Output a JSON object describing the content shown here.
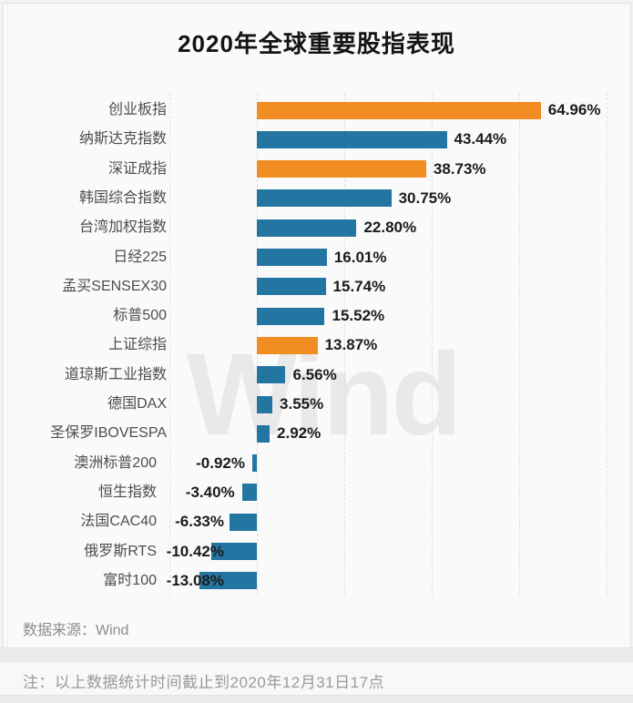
{
  "title": "2020年全球重要股指表现",
  "watermark_text": "Wind",
  "footer": {
    "source": "数据来源：Wind",
    "note": "注：以上数据统计时间截止到2020年12月31日17点"
  },
  "colors": {
    "highlight_orange": "#F18D22",
    "bar_blue": "#2476A2",
    "grid": "#e0e0e0",
    "value_text": "#1b1b1b",
    "category_text": "#4d4d4d"
  },
  "chart_data": {
    "type": "bar",
    "orientation": "horizontal",
    "title": "2020年全球重要股指表现",
    "unit": "%",
    "xlim": [
      -20,
      80
    ],
    "grid_step": 20,
    "grid_style": "dashed-vertical",
    "legend": "none",
    "categories": [
      "创业板指",
      "纳斯达克指数",
      "深证成指",
      "韩国综合指数",
      "台湾加权指数",
      "日经225",
      "孟买SENSEX30",
      "标普500",
      "上证综指",
      "道琼斯工业指数",
      "德国DAX",
      "圣保罗IBOVESPA",
      "澳洲标普200",
      "恒生指数",
      "法国CAC40",
      "俄罗斯RTS",
      "富时100"
    ],
    "values": [
      64.96,
      43.44,
      38.73,
      30.75,
      22.8,
      16.01,
      15.74,
      15.52,
      13.87,
      6.56,
      3.55,
      2.92,
      -0.92,
      -3.4,
      -6.33,
      -10.42,
      -13.08
    ],
    "value_labels": [
      "64.96%",
      "43.44%",
      "38.73%",
      "30.75%",
      "22.80%",
      "16.01%",
      "15.74%",
      "15.52%",
      "13.87%",
      "6.56%",
      "3.55%",
      "2.92%",
      "-0.92%",
      "-3.40%",
      "-6.33%",
      "-10.42%",
      "-13.08%"
    ],
    "bar_colors": [
      "#F18D22",
      "#2476A2",
      "#F18D22",
      "#2476A2",
      "#2476A2",
      "#2476A2",
      "#2476A2",
      "#2476A2",
      "#F18D22",
      "#2476A2",
      "#2476A2",
      "#2476A2",
      "#2476A2",
      "#2476A2",
      "#2476A2",
      "#2476A2",
      "#2476A2"
    ]
  }
}
